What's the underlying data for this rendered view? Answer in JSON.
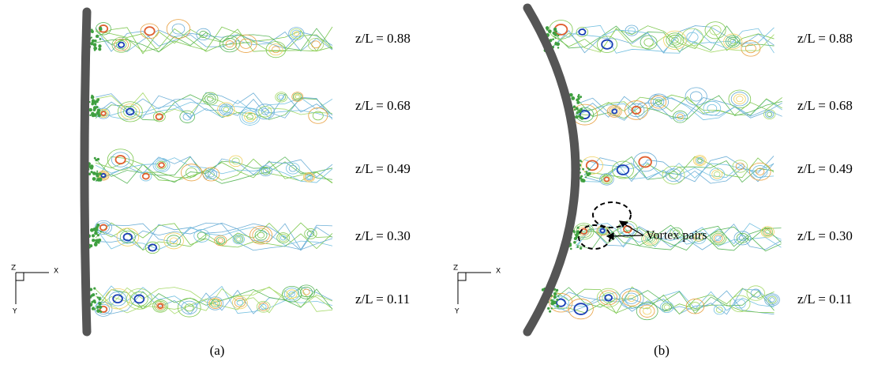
{
  "panels": [
    {
      "caption": "(a)",
      "axes": {
        "z": "Z",
        "x": "X",
        "y": "Y"
      },
      "labels": [
        "z/L = 0.88",
        "z/L = 0.68",
        "z/L = 0.49",
        "z/L = 0.30",
        "z/L = 0.11"
      ]
    },
    {
      "caption": "(b)",
      "axes": {
        "z": "Z",
        "x": "X",
        "y": "Y"
      },
      "labels": [
        "z/L = 0.88",
        "z/L = 0.68",
        "z/L = 0.49",
        "z/L = 0.30",
        "z/L = 0.11"
      ],
      "annotation": "Vortex pairs"
    }
  ]
}
